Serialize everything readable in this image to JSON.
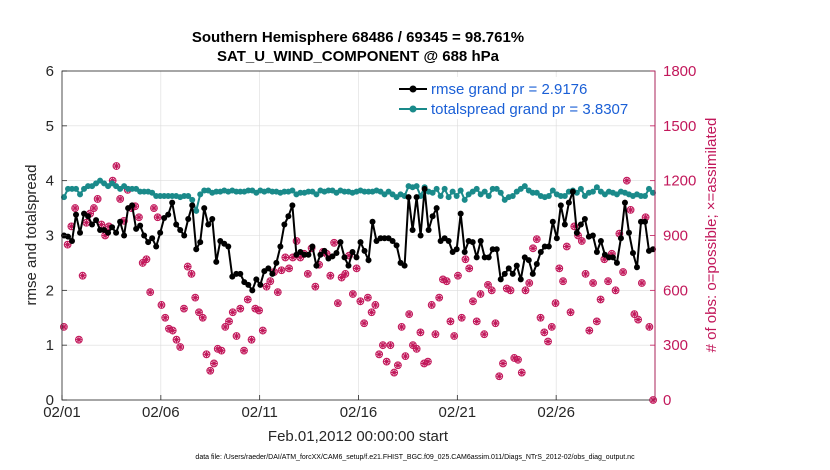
{
  "chart_data": {
    "type": "line",
    "title": "Southern Hemisphere 68486 / 69345 = 98.761%",
    "subtitle": "SAT_U_WIND_COMPONENT @ 688 hPa",
    "xlabel": "Feb.01,2012 00:00:00 start",
    "ylabel": "rmse and totalspread",
    "ylabel_right": "# of obs: o=possible; ×=assimilated",
    "x_ticks": [
      "02/01",
      "02/06",
      "02/11",
      "02/16",
      "02/21",
      "02/26"
    ],
    "y_ticks": [
      "0",
      "1",
      "2",
      "3",
      "4",
      "5",
      "6"
    ],
    "y2_ticks": [
      "0",
      "300",
      "600",
      "900",
      "1200",
      "1500",
      "1800"
    ],
    "xlim": [
      0,
      30
    ],
    "ylim": [
      0,
      6
    ],
    "y2lim": [
      0,
      1800
    ],
    "legend": [
      {
        "label": "rmse grand pr = 2.9176",
        "color": "#000000"
      },
      {
        "label": "totalspread grand pr = 3.8307",
        "color": "#1a8a8a"
      }
    ],
    "series": [
      {
        "name": "rmse",
        "color": "#000000",
        "axis": "left",
        "values": [
          3.0,
          2.98,
          2.9,
          3.38,
          3.05,
          3.4,
          3.35,
          3.2,
          3.28,
          3.1,
          3.1,
          3.05,
          3.15,
          3.05,
          3.25,
          3.0,
          3.5,
          3.55,
          3.12,
          3.18,
          3.0,
          2.88,
          2.95,
          2.8,
          3.05,
          3.32,
          3.38,
          3.6,
          3.2,
          3.1,
          3.0,
          3.3,
          3.55,
          2.75,
          2.88,
          3.5,
          3.2,
          3.3,
          2.52,
          2.9,
          2.85,
          2.8,
          2.25,
          2.3,
          2.3,
          2.15,
          2.1,
          2.0,
          2.2,
          2.1,
          2.35,
          2.4,
          2.3,
          2.5,
          2.8,
          3.2,
          3.35,
          3.55,
          2.65,
          2.7,
          2.65,
          2.65,
          2.8,
          2.45,
          2.65,
          2.72,
          2.58,
          2.62,
          2.68,
          2.88,
          2.6,
          2.45,
          2.7,
          2.6,
          2.88,
          2.72,
          2.55,
          3.25,
          2.9,
          2.95,
          2.95,
          2.95,
          2.9,
          2.82,
          2.5,
          2.45,
          3.7,
          3.1,
          3.7,
          3.0,
          3.85,
          3.1,
          3.35,
          3.5,
          2.9,
          2.95,
          2.9,
          2.7,
          2.75,
          3.4,
          2.7,
          2.9,
          2.88,
          2.6,
          2.9,
          2.6,
          2.6,
          2.75,
          2.75,
          2.2,
          2.3,
          2.4,
          2.3,
          2.45,
          2.2,
          2.6,
          2.55,
          2.3,
          2.48,
          2.7,
          2.8,
          2.8,
          3.25,
          2.95,
          3.55,
          3.2,
          3.6,
          3.8,
          3.05,
          3.2,
          3.3,
          2.98,
          3.0,
          2.7,
          2.9,
          2.65,
          2.6,
          2.6,
          2.5,
          2.95,
          3.6,
          3.05,
          2.68,
          2.42,
          3.25,
          3.25,
          2.72,
          2.75
        ]
      },
      {
        "name": "totalspread",
        "color": "#1a8a8a",
        "axis": "left",
        "values": [
          3.7,
          3.85,
          3.85,
          3.85,
          3.75,
          3.85,
          3.9,
          3.9,
          3.95,
          4.0,
          3.95,
          3.9,
          3.95,
          3.9,
          3.85,
          3.9,
          3.85,
          3.85,
          3.85,
          3.8,
          3.8,
          3.8,
          3.78,
          3.72,
          3.72,
          3.72,
          3.72,
          3.72,
          3.72,
          3.7,
          3.72,
          3.72,
          3.65,
          3.45,
          3.75,
          3.82,
          3.82,
          3.78,
          3.8,
          3.8,
          3.82,
          3.8,
          3.82,
          3.8,
          3.8,
          3.8,
          3.82,
          3.82,
          3.78,
          3.82,
          3.8,
          3.82,
          3.8,
          3.8,
          3.78,
          3.8,
          3.8,
          3.82,
          3.75,
          3.78,
          3.78,
          3.8,
          3.8,
          3.75,
          3.82,
          3.8,
          3.82,
          3.82,
          3.78,
          3.82,
          3.8,
          3.8,
          3.78,
          3.8,
          3.82,
          3.8,
          3.8,
          3.8,
          3.82,
          3.8,
          3.75,
          3.8,
          3.75,
          3.7,
          3.75,
          3.72,
          3.9,
          3.88,
          3.9,
          3.72,
          3.88,
          3.8,
          3.78,
          3.85,
          3.72,
          3.85,
          3.7,
          3.8,
          3.72,
          3.82,
          3.65,
          3.75,
          3.8,
          3.85,
          3.75,
          3.8,
          3.72,
          3.85,
          3.85,
          3.78,
          3.65,
          3.7,
          3.72,
          3.8,
          3.85,
          3.9,
          3.82,
          3.78,
          3.78,
          3.72,
          3.7,
          3.72,
          3.82,
          3.75,
          3.72,
          3.72,
          3.8,
          3.82,
          3.78,
          3.85,
          3.72,
          3.78,
          3.8,
          3.88,
          3.8,
          3.75,
          3.8,
          3.78,
          3.75,
          3.8,
          3.78,
          3.75,
          3.72,
          3.75,
          3.72,
          3.72,
          3.85,
          3.78
        ]
      },
      {
        "name": "obs possible / assimilated",
        "color": "#c2185b",
        "axis": "right",
        "values": [
          400,
          850,
          950,
          1050,
          330,
          680,
          970,
          1020,
          1050,
          1100,
          960,
          900,
          950,
          1200,
          1280,
          1100,
          980,
          1150,
          1050,
          1060,
          1000,
          750,
          770,
          590,
          1050,
          1000,
          520,
          450,
          390,
          380,
          330,
          290,
          500,
          730,
          690,
          560,
          480,
          450,
          250,
          160,
          200,
          280,
          270,
          400,
          430,
          480,
          350,
          500,
          270,
          550,
          330,
          500,
          490,
          380,
          620,
          650,
          700,
          590,
          710,
          780,
          720,
          780,
          870,
          780,
          800,
          690,
          830,
          620,
          740,
          810,
          800,
          680,
          860,
          530,
          670,
          690,
          790,
          580,
          720,
          540,
          420,
          560,
          480,
          520,
          250,
          300,
          210,
          300,
          150,
          190,
          400,
          240,
          470,
          300,
          280,
          370,
          200,
          210,
          520,
          360,
          560,
          660,
          650,
          430,
          350,
          680,
          450,
          770,
          720,
          540,
          430,
          580,
          360,
          630,
          600,
          420,
          130,
          200,
          610,
          600,
          230,
          220,
          150,
          600,
          640,
          830,
          880,
          450,
          370,
          320,
          400,
          530,
          720,
          650,
          840,
          480,
          950,
          900,
          870,
          690,
          380,
          640,
          430,
          550,
          770,
          650,
          800,
          600,
          910,
          700,
          1200,
          1040,
          470,
          440,
          640,
          1000,
          400,
          0
        ]
      }
    ]
  },
  "footer": "data file: /Users/raeder/DAI/ATM_forcXX/CAM6_setup/f.e21.FHIST_BGC.f09_025.CAM6assim.011/Diags_NTrS_2012-02/obs_diag_output.nc"
}
